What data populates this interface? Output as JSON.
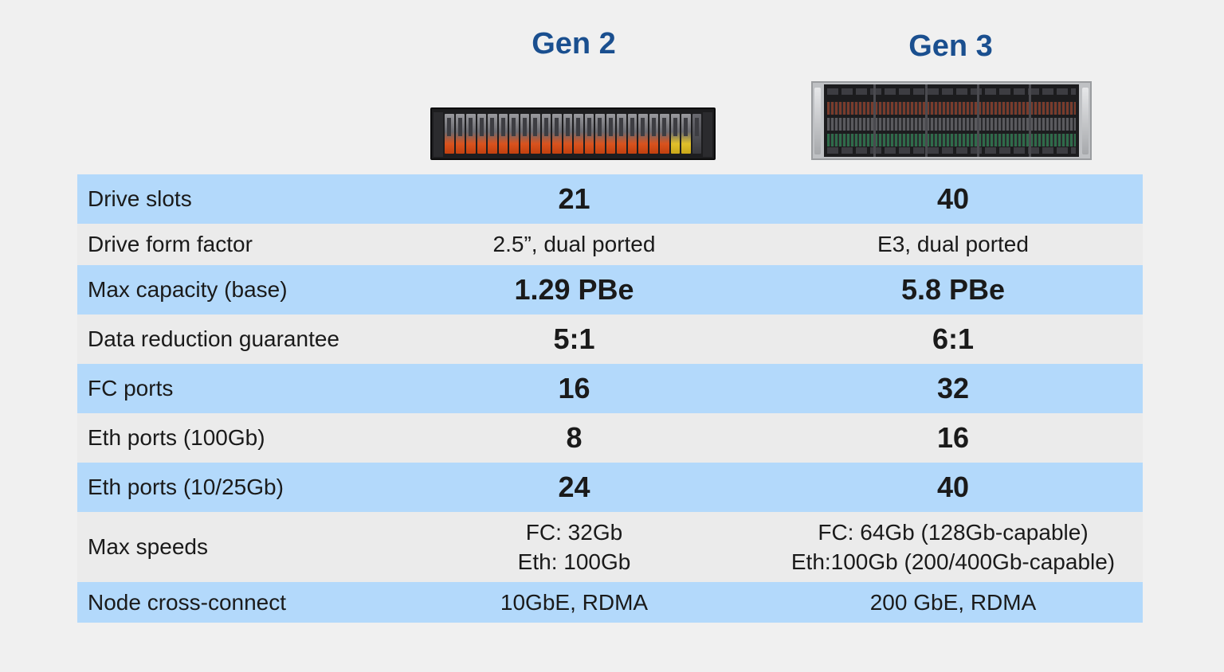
{
  "headers": {
    "gen2": "Gen 2",
    "gen3": "Gen 3"
  },
  "images": {
    "gen2": "gen2-server-chassis",
    "gen3": "gen3-server-chassis"
  },
  "colors": {
    "header_text": "#1a4f8f",
    "row_blue": "#b3d9fb",
    "row_grey": "#ebebeb",
    "background": "#f0f0f0"
  },
  "rows": [
    {
      "label": "Drive slots",
      "gen2": "21",
      "gen3": "40"
    },
    {
      "label": "Drive form factor",
      "gen2": "2.5”, dual ported",
      "gen3": "E3, dual ported"
    },
    {
      "label": "Max capacity (base)",
      "gen2": "1.29 PBe",
      "gen3": "5.8 PBe"
    },
    {
      "label": "Data reduction guarantee",
      "gen2": "5:1",
      "gen3": "6:1"
    },
    {
      "label": "FC ports",
      "gen2": "16",
      "gen3": "32"
    },
    {
      "label": "Eth ports (100Gb)",
      "gen2": "8",
      "gen3": "16"
    },
    {
      "label": "Eth ports (10/25Gb)",
      "gen2": "24",
      "gen3": "40"
    },
    {
      "label": "Max speeds",
      "gen2_lines": [
        "FC: 32Gb",
        "Eth: 100Gb"
      ],
      "gen3_lines": [
        "FC: 64Gb (128Gb-capable)",
        "Eth:100Gb (200/400Gb-capable)"
      ]
    },
    {
      "label": "Node cross-connect",
      "gen2": "10GbE, RDMA",
      "gen3": "200 GbE, RDMA"
    }
  ]
}
